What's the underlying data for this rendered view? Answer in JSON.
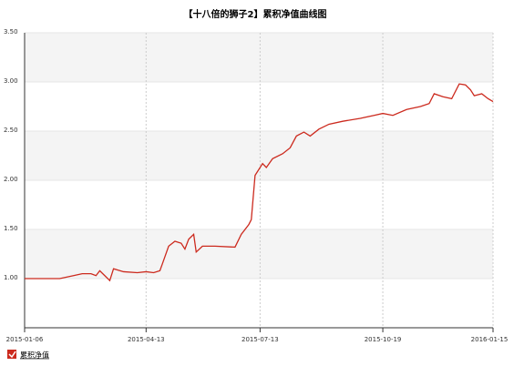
{
  "chart_data": {
    "type": "line",
    "title": "【十八倍的狮子2】累积净值曲线图",
    "x": [
      "2015-01-06",
      "2015-02-03",
      "2015-02-14",
      "2015-02-21",
      "2015-02-28",
      "2015-03-04",
      "2015-03-07",
      "2015-03-11",
      "2015-03-15",
      "2015-03-18",
      "2015-03-26",
      "2015-04-06",
      "2015-04-13",
      "2015-04-19",
      "2015-04-24",
      "2015-04-26",
      "2015-05-01",
      "2015-05-06",
      "2015-05-11",
      "2015-05-14",
      "2015-05-17",
      "2015-05-21",
      "2015-05-23",
      "2015-05-28",
      "2015-06-07",
      "2015-06-23",
      "2015-06-28",
      "2015-07-04",
      "2015-07-06",
      "2015-07-09",
      "2015-07-15",
      "2015-07-18",
      "2015-07-23",
      "2015-07-31",
      "2015-08-06",
      "2015-08-11",
      "2015-08-17",
      "2015-08-22",
      "2015-08-29",
      "2015-09-06",
      "2015-09-17",
      "2015-10-01",
      "2015-10-12",
      "2015-10-19",
      "2015-10-27",
      "2015-11-07",
      "2015-11-18",
      "2015-11-25",
      "2015-11-29",
      "2015-12-06",
      "2015-12-13",
      "2015-12-19",
      "2015-12-24",
      "2015-12-28",
      "2015-12-31",
      "2016-01-06",
      "2016-01-11",
      "2016-01-15"
    ],
    "series": [
      {
        "name": "累积净值",
        "color": "#cc2a1e",
        "values": [
          1.0,
          1.0,
          1.03,
          1.05,
          1.05,
          1.03,
          1.08,
          1.03,
          0.98,
          1.1,
          1.07,
          1.06,
          1.07,
          1.06,
          1.08,
          1.15,
          1.33,
          1.38,
          1.36,
          1.3,
          1.4,
          1.45,
          1.27,
          1.33,
          1.33,
          1.32,
          1.45,
          1.55,
          1.6,
          2.05,
          2.17,
          2.13,
          2.22,
          2.27,
          2.33,
          2.45,
          2.49,
          2.45,
          2.52,
          2.57,
          2.6,
          2.63,
          2.66,
          2.68,
          2.66,
          2.72,
          2.75,
          2.78,
          2.88,
          2.85,
          2.83,
          2.98,
          2.97,
          2.92,
          2.86,
          2.88,
          2.83,
          2.8
        ]
      }
    ],
    "xlim": [
      "2015-01-06",
      "2016-01-15"
    ],
    "xticks": [
      "2015-01-06",
      "2015-04-13",
      "2015-07-13",
      "2015-10-19",
      "2016-01-15"
    ],
    "ylim": [
      0.5,
      3.5
    ],
    "yticks": [
      {
        "value": 1,
        "label": "1.00"
      },
      {
        "value": 1.5,
        "label": "1.50"
      },
      {
        "value": 2,
        "label": "2.00"
      },
      {
        "value": 2.5,
        "label": "2.50"
      },
      {
        "value": 3,
        "label": "3.00"
      },
      {
        "value": 3.5,
        "label": "3.50"
      }
    ],
    "grid": true
  }
}
